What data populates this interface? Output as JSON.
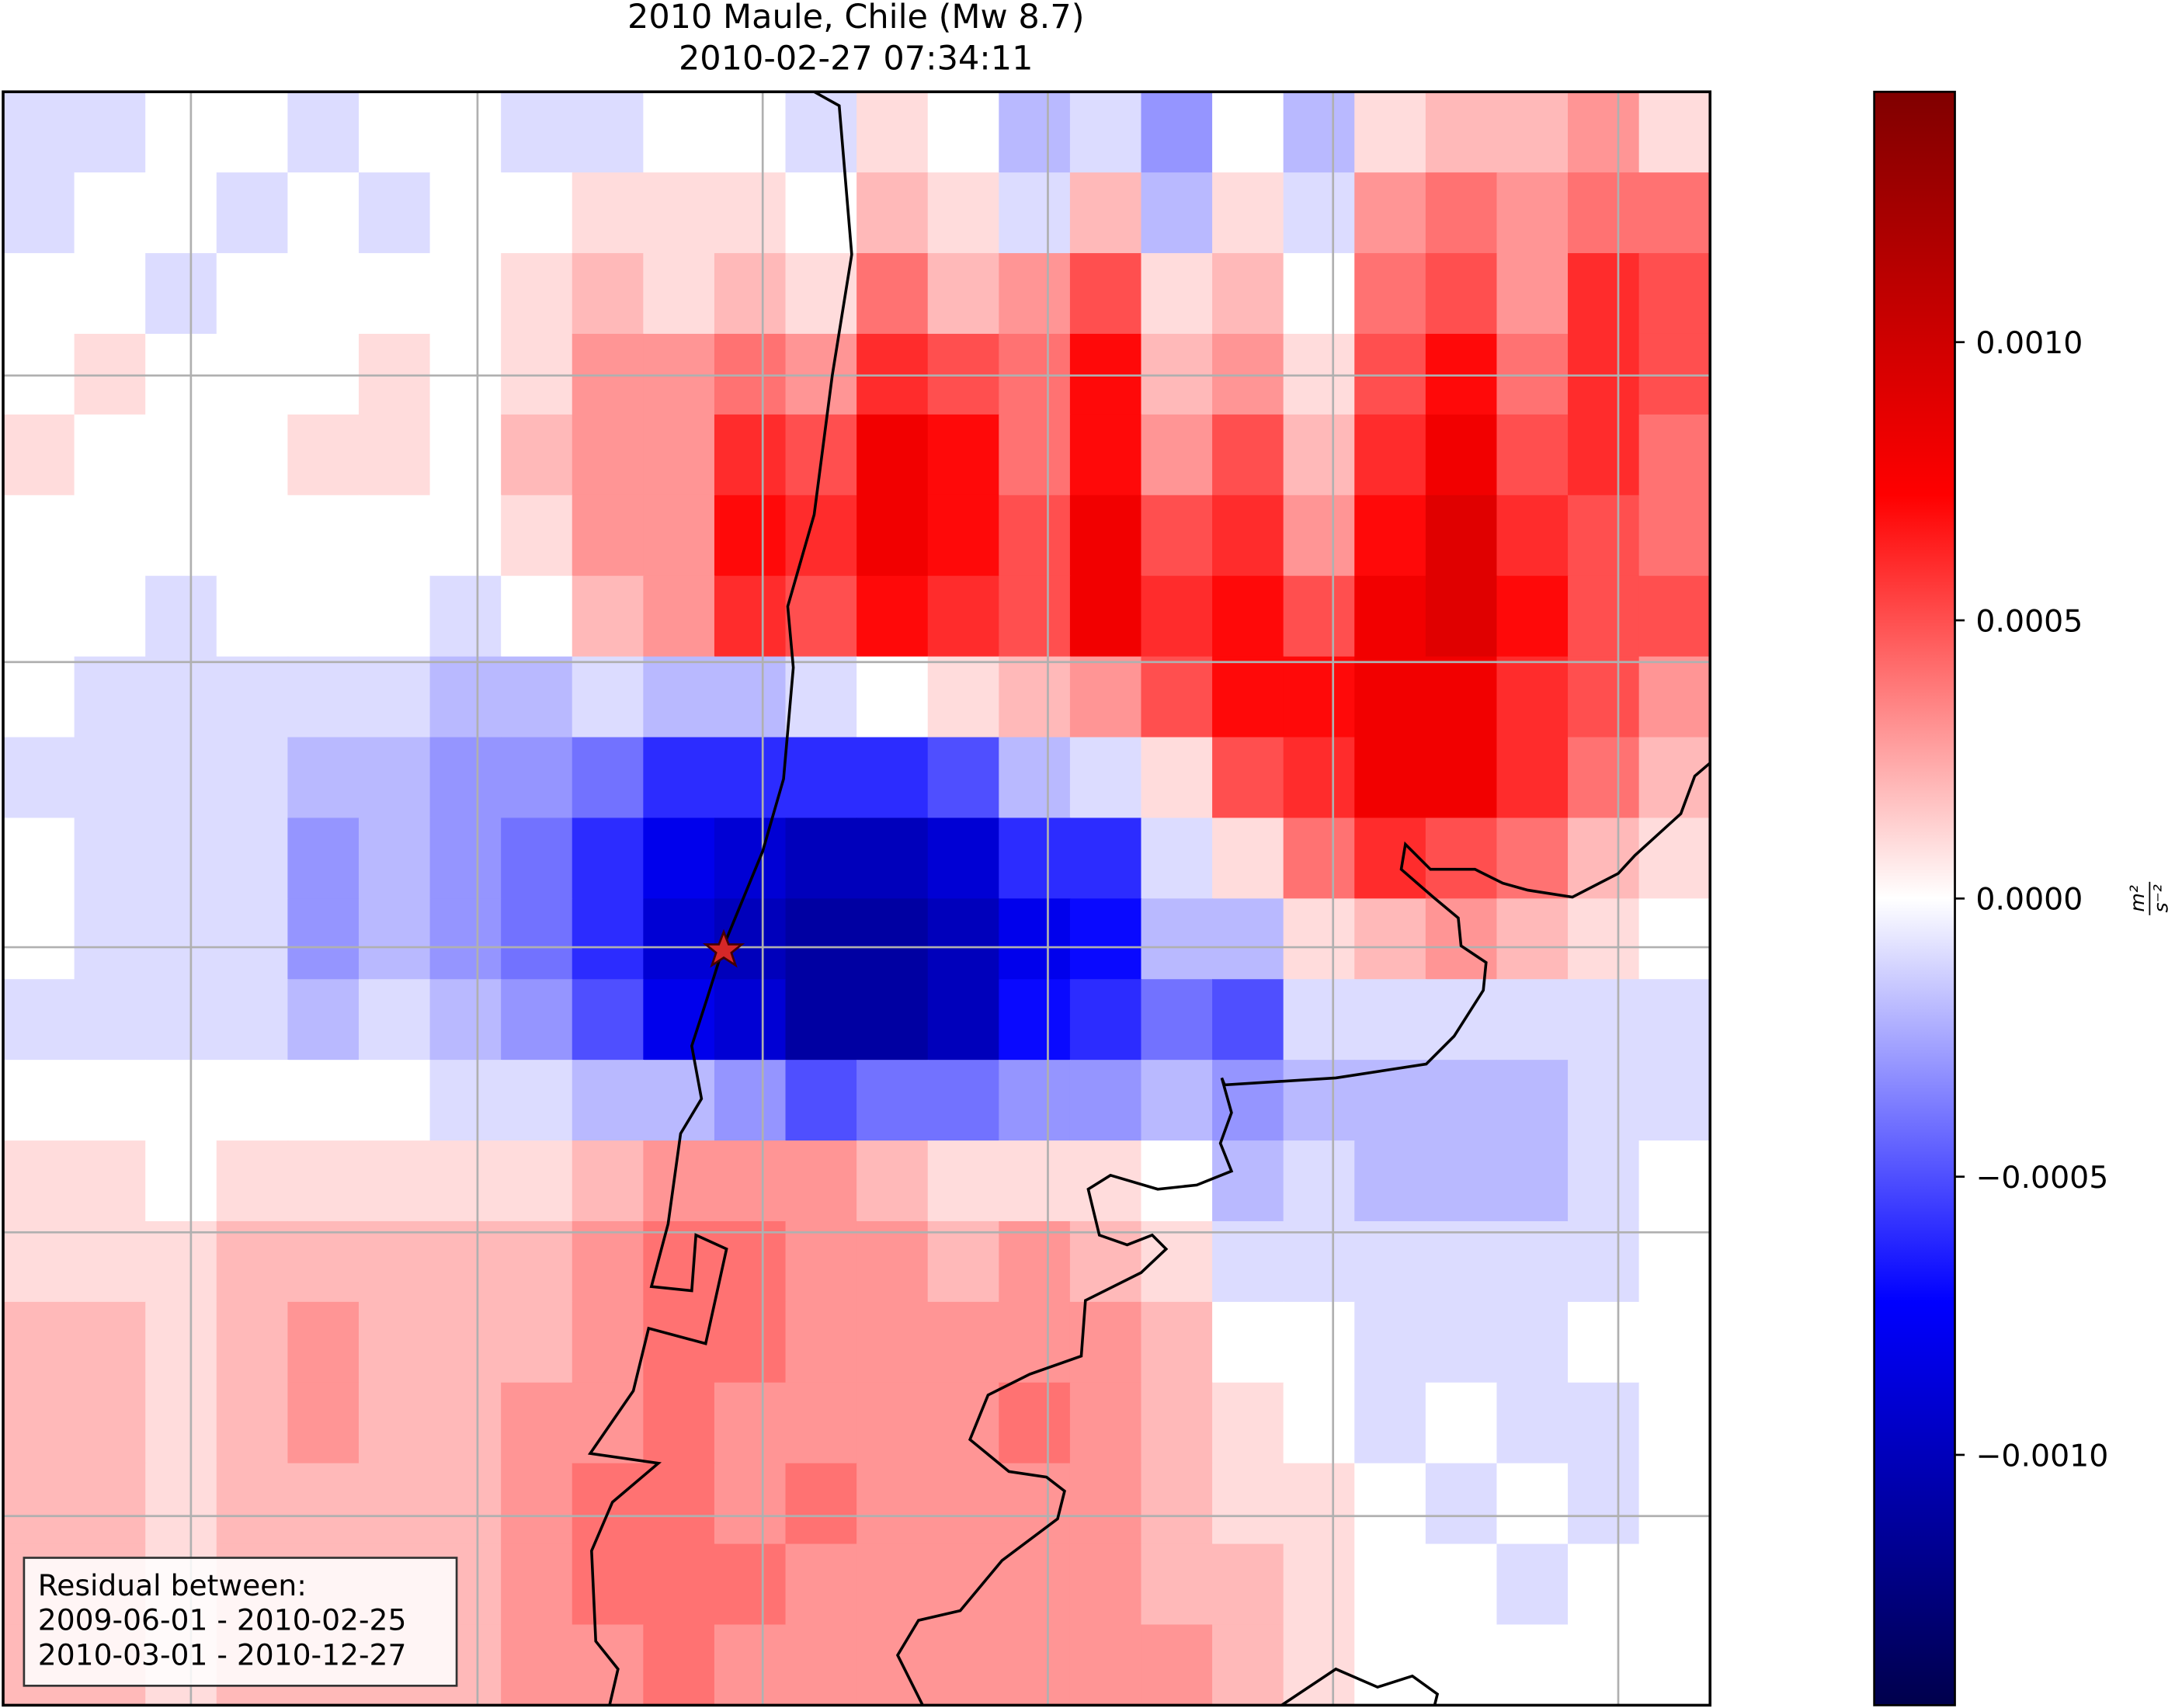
{
  "chart_data": {
    "type": "heatmap",
    "title": "2010 Maule, Chile (Mw 8.7)",
    "subtitle": "2010-02-27 07:34:11",
    "colormap": "seismic",
    "clim": [
      -0.00145,
      0.00145
    ],
    "cticks": [
      {
        "value": -0.001,
        "label": "−0.0010"
      },
      {
        "value": -0.0005,
        "label": "−0.0005"
      },
      {
        "value": 0,
        "label": "0.0000"
      },
      {
        "value": 0.0005,
        "label": "0.0005"
      },
      {
        "value": 0.001,
        "label": "0.0010"
      }
    ],
    "colorbar_label": {
      "numerator": "m²",
      "denominator": "s⁻²"
    },
    "annotation": [
      "Residual between:",
      "2009-06-01 - 2010-02-25",
      "2010-03-01 - 2010-12-27"
    ],
    "grid": true,
    "values": [
      [
        -0.0001,
        -0.0001,
        0,
        0,
        -0.0001,
        0,
        0,
        -0.0001,
        -0.0001,
        0,
        0,
        -0.0001,
        0.0001,
        0,
        -0.0002,
        -0.0001,
        -0.0003,
        0,
        -0.0002,
        0.0001,
        0.0002,
        0.0002,
        0.0003,
        0.0001
      ],
      [
        -0.0001,
        0,
        0,
        -0.0001,
        0,
        -0.0001,
        0,
        0,
        0.0001,
        0.0001,
        0.0001,
        0,
        0.0002,
        0.0001,
        -0.0001,
        0.0002,
        -0.0002,
        0.0001,
        -0.0001,
        0.0003,
        0.0004,
        0.0003,
        0.0004,
        0.0004
      ],
      [
        0,
        0,
        -0.0001,
        0,
        0,
        0,
        0,
        0.0001,
        0.0002,
        0.0001,
        0.0002,
        0.0001,
        0.0004,
        0.0002,
        0.0003,
        0.0005,
        0.0001,
        0.0002,
        0,
        0.0004,
        0.0005,
        0.0003,
        0.0006,
        0.0005
      ],
      [
        0,
        0.0001,
        0,
        0,
        0,
        0.0001,
        0,
        0.0001,
        0.0003,
        0.0003,
        0.0004,
        0.0003,
        0.0006,
        0.0005,
        0.0004,
        0.0007,
        0.0002,
        0.0003,
        0.0001,
        0.0005,
        0.0007,
        0.0004,
        0.0006,
        0.0005
      ],
      [
        0.0001,
        0,
        0,
        0,
        0.0001,
        0.0001,
        0,
        0.0002,
        0.0003,
        0.0003,
        0.0006,
        0.0005,
        0.0008,
        0.0007,
        0.0004,
        0.0007,
        0.0003,
        0.0005,
        0.0002,
        0.0006,
        0.0008,
        0.0005,
        0.0006,
        0.0004
      ],
      [
        0,
        0,
        0,
        0,
        0,
        0,
        0,
        0.0001,
        0.0003,
        0.0003,
        0.0007,
        0.0006,
        0.0008,
        0.0007,
        0.0005,
        0.0008,
        0.0005,
        0.0006,
        0.0003,
        0.0007,
        0.0009,
        0.0006,
        0.0005,
        0.0004
      ],
      [
        0,
        0,
        -0.0001,
        0,
        0,
        0,
        -0.0001,
        0,
        0.0002,
        0.0003,
        0.0006,
        0.0005,
        0.0007,
        0.0006,
        0.0005,
        0.0008,
        0.0006,
        0.0007,
        0.0005,
        0.0008,
        0.0009,
        0.0007,
        0.0005,
        0.0005
      ],
      [
        0,
        -0.0001,
        -0.0001,
        -0.0001,
        -0.0001,
        -0.0001,
        -0.0002,
        -0.0002,
        -0.0001,
        -0.0002,
        -0.0002,
        -0.0001,
        0,
        0.0001,
        0.0002,
        0.0003,
        0.0005,
        0.0007,
        0.0007,
        0.0008,
        0.0008,
        0.0006,
        0.0005,
        0.0003
      ],
      [
        -0.0001,
        -0.0001,
        -0.0001,
        -0.0001,
        -0.0002,
        -0.0002,
        -0.0003,
        -0.0003,
        -0.0004,
        -0.0006,
        -0.0006,
        -0.0006,
        -0.0006,
        -0.0005,
        -0.0002,
        -0.0001,
        0.0001,
        0.0005,
        0.0006,
        0.0008,
        0.0008,
        0.0006,
        0.0004,
        0.0002
      ],
      [
        0,
        -0.0001,
        -0.0001,
        -0.0001,
        -0.0003,
        -0.0002,
        -0.0003,
        -0.0004,
        -0.0006,
        -0.0008,
        -0.0009,
        -0.001,
        -0.001,
        -0.0009,
        -0.0006,
        -0.0006,
        -0.0001,
        0.0001,
        0.0004,
        0.0006,
        0.0005,
        0.0004,
        0.0002,
        0.0001
      ],
      [
        0,
        -0.0001,
        -0.0001,
        -0.0001,
        -0.0003,
        -0.0002,
        -0.0003,
        -0.0004,
        -0.0006,
        -0.0009,
        -0.001,
        -0.0011,
        -0.0011,
        -0.001,
        -0.0008,
        -0.0007,
        -0.0002,
        -0.0002,
        0.0001,
        0.0002,
        0.0003,
        0.0002,
        0.0001,
        0
      ],
      [
        -0.0001,
        -0.0001,
        -0.0001,
        -0.0001,
        -0.0002,
        -0.0001,
        -0.0002,
        -0.0003,
        -0.0005,
        -0.0008,
        -0.0009,
        -0.0011,
        -0.0011,
        -0.001,
        -0.0007,
        -0.0006,
        -0.0004,
        -0.0005,
        -0.0001,
        -0.0001,
        -0.0001,
        -0.0001,
        -0.0001,
        -0.0001
      ],
      [
        0,
        0,
        0,
        0,
        0,
        0,
        -0.0001,
        -0.0001,
        -0.0002,
        -0.0002,
        -0.0003,
        -0.0005,
        -0.0004,
        -0.0004,
        -0.0003,
        -0.0003,
        -0.0002,
        -0.0003,
        -0.0002,
        -0.0002,
        -0.0002,
        -0.0002,
        -0.0001,
        -0.0001
      ],
      [
        0.0001,
        0.0001,
        0,
        0.0001,
        0.0001,
        0.0001,
        0.0001,
        0.0001,
        0.0002,
        0.0003,
        0.0003,
        0.0003,
        0.0002,
        0.0001,
        0.0001,
        0.0001,
        0,
        -0.0002,
        -0.0001,
        -0.0002,
        -0.0002,
        -0.0002,
        -0.0001,
        0
      ],
      [
        0.0001,
        0.0001,
        0.0001,
        0.0002,
        0.0002,
        0.0002,
        0.0002,
        0.0002,
        0.0003,
        0.0004,
        0.0004,
        0.0003,
        0.0003,
        0.0002,
        0.0003,
        0.0002,
        0.0001,
        -0.0001,
        -0.0001,
        -0.0001,
        -0.0001,
        -0.0001,
        -0.0001,
        0
      ],
      [
        0.0002,
        0.0002,
        0.0001,
        0.0002,
        0.0003,
        0.0002,
        0.0002,
        0.0002,
        0.0003,
        0.0004,
        0.0004,
        0.0003,
        0.0003,
        0.0003,
        0.0003,
        0.0003,
        0.0002,
        0,
        0,
        -0.0001,
        -0.0001,
        -0.0001,
        0,
        0
      ],
      [
        0.0002,
        0.0002,
        0.0001,
        0.0002,
        0.0003,
        0.0002,
        0.0002,
        0.0003,
        0.0003,
        0.0004,
        0.0003,
        0.0003,
        0.0003,
        0.0003,
        0.0004,
        0.0003,
        0.0002,
        0.0001,
        0,
        -0.0001,
        0,
        -0.0001,
        -0.0001,
        0
      ],
      [
        0.0002,
        0.0002,
        0.0001,
        0.0002,
        0.0002,
        0.0002,
        0.0002,
        0.0003,
        0.0004,
        0.0004,
        0.0003,
        0.0004,
        0.0003,
        0.0003,
        0.0003,
        0.0003,
        0.0002,
        0.0001,
        0.0001,
        0,
        -0.0001,
        0,
        -0.0001,
        0
      ],
      [
        0.0002,
        0.0002,
        0.0001,
        0.0002,
        0.0002,
        0.0002,
        0.0002,
        0.0003,
        0.0004,
        0.0004,
        0.0004,
        0.0003,
        0.0003,
        0.0003,
        0.0003,
        0.0003,
        0.0002,
        0.0002,
        0.0001,
        0,
        0,
        -0.0001,
        0,
        0
      ],
      [
        0.0002,
        0.0002,
        0.0001,
        0.0002,
        0.0002,
        0.0002,
        0.0002,
        0.0003,
        0.0003,
        0.0004,
        0.0003,
        0.0003,
        0.0003,
        0.0003,
        0.0003,
        0.0003,
        0.0003,
        0.0002,
        0.0001,
        0,
        0,
        0,
        0,
        0
      ]
    ]
  }
}
